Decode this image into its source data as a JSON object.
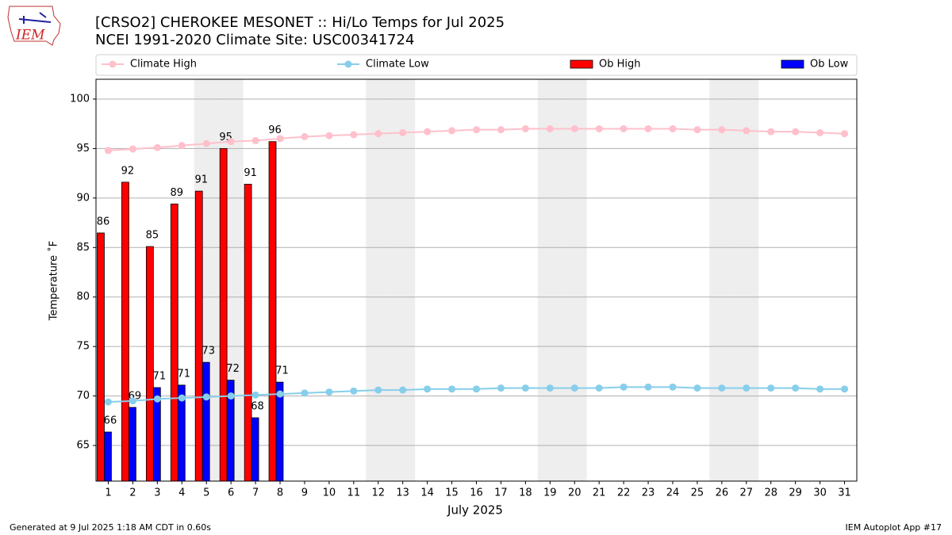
{
  "logo_text": "IEM",
  "footer_left": "Generated at 9 Jul 2025 1:18 AM CDT in 0.60s",
  "footer_right": "IEM Autoplot App #17",
  "chart_data": {
    "type": "bar",
    "title": "[CRSO2] CHEROKEE MESONET :: Hi/Lo Temps for Jul 2025",
    "subtitle": "NCEI 1991-2020 Climate Site: USC00341724",
    "x_label": "July 2025",
    "y_label": "Temperature ˚F",
    "categories": [
      "1",
      "2",
      "3",
      "4",
      "5",
      "6",
      "7",
      "8",
      "9",
      "10",
      "11",
      "12",
      "13",
      "14",
      "15",
      "16",
      "17",
      "18",
      "19",
      "20",
      "21",
      "22",
      "23",
      "24",
      "25",
      "26",
      "27",
      "28",
      "29",
      "30",
      "31"
    ],
    "shaded_categories": [
      "5",
      "6",
      "12",
      "13",
      "19",
      "20",
      "26",
      "27"
    ],
    "shade_color": "#eeeeee",
    "ylim": [
      61.4,
      102
    ],
    "yticks": [
      65,
      70,
      75,
      80,
      85,
      90,
      95,
      100
    ],
    "grid": true,
    "series": [
      {
        "name": "Climate High",
        "type": "line",
        "color": "#ffc0cb",
        "values": [
          94.8,
          94.95,
          95.1,
          95.3,
          95.5,
          95.7,
          95.8,
          96.0,
          96.2,
          96.3,
          96.4,
          96.5,
          96.6,
          96.7,
          96.8,
          96.9,
          96.9,
          97.0,
          97.0,
          97.0,
          97.0,
          97.0,
          97.0,
          97.0,
          96.9,
          96.9,
          96.8,
          96.7,
          96.7,
          96.6,
          96.5
        ]
      },
      {
        "name": "Climate Low",
        "type": "line",
        "color": "#87ceeb",
        "values": [
          69.4,
          69.5,
          69.7,
          69.8,
          69.9,
          70.0,
          70.1,
          70.2,
          70.3,
          70.4,
          70.5,
          70.6,
          70.6,
          70.7,
          70.7,
          70.7,
          70.8,
          70.8,
          70.8,
          70.8,
          70.8,
          70.9,
          70.9,
          70.9,
          70.8,
          70.8,
          70.8,
          70.8,
          70.8,
          70.7,
          70.7
        ]
      },
      {
        "name": "Ob High",
        "type": "bar",
        "color": "#ff0000",
        "values": [
          86.47,
          91.6,
          85.1,
          89.4,
          90.7,
          95.0,
          91.4,
          95.7,
          null,
          null,
          null,
          null,
          null,
          null,
          null,
          null,
          null,
          null,
          null,
          null,
          null,
          null,
          null,
          null,
          null,
          null,
          null,
          null,
          null,
          null,
          null
        ],
        "value_labels": [
          "86",
          "92",
          "85",
          "89",
          "91",
          "95",
          "91",
          "96",
          null,
          null,
          null,
          null,
          null,
          null,
          null,
          null,
          null,
          null,
          null,
          null,
          null,
          null,
          null,
          null,
          null,
          null,
          null,
          null,
          null,
          null,
          null
        ]
      },
      {
        "name": "Ob Low",
        "type": "bar",
        "color": "#0000ff",
        "values": [
          66.36,
          68.85,
          70.85,
          71.1,
          73.4,
          71.6,
          67.8,
          71.4,
          null,
          null,
          null,
          null,
          null,
          null,
          null,
          null,
          null,
          null,
          null,
          null,
          null,
          null,
          null,
          null,
          null,
          null,
          null,
          null,
          null,
          null,
          null
        ],
        "value_labels": [
          "66",
          "69",
          "71",
          "71",
          "73",
          "72",
          "68",
          "71",
          null,
          null,
          null,
          null,
          null,
          null,
          null,
          null,
          null,
          null,
          null,
          null,
          null,
          null,
          null,
          null,
          null,
          null,
          null,
          null,
          null,
          null,
          null
        ]
      }
    ]
  }
}
